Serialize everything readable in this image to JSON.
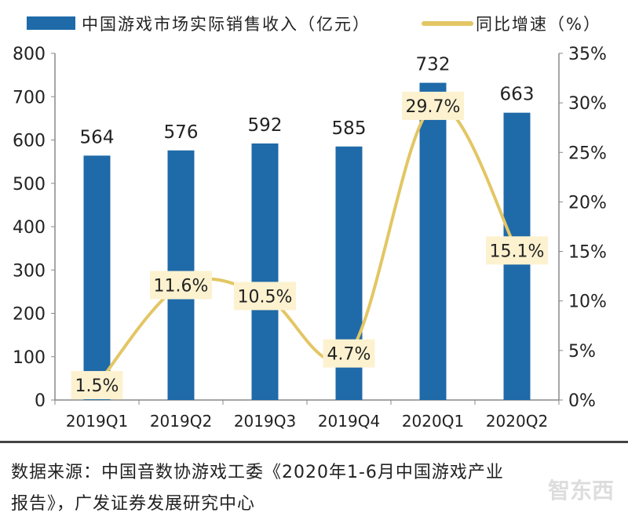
{
  "chart_data": {
    "type": "bar+line",
    "categories": [
      "2019Q1",
      "2019Q2",
      "2019Q3",
      "2019Q4",
      "2020Q1",
      "2020Q2"
    ],
    "series": [
      {
        "name": "中国游戏市场实际销售收入（亿元）",
        "type": "bar",
        "axis": "left",
        "values": [
          564,
          576,
          592,
          585,
          732,
          663
        ],
        "color": "#1f6aa8"
      },
      {
        "name": "同比增速（%）",
        "type": "line",
        "axis": "right",
        "values": [
          1.5,
          11.6,
          10.5,
          4.7,
          29.7,
          15.1
        ],
        "color": "#e3c664"
      }
    ],
    "data_labels_bar": [
      "564",
      "576",
      "592",
      "585",
      "732",
      "663"
    ],
    "data_labels_line": [
      "1.5%",
      "11.6%",
      "10.5%",
      "4.7%",
      "29.7%",
      "15.1%"
    ],
    "ylim": [
      0,
      800
    ],
    "y_ticks": [
      "0",
      "100",
      "200",
      "300",
      "400",
      "500",
      "600",
      "700",
      "800"
    ],
    "y2lim": [
      0,
      35
    ],
    "y2_ticks": [
      "0%",
      "5%",
      "10%",
      "15%",
      "20%",
      "25%",
      "30%",
      "35%"
    ],
    "grid": false,
    "legend": "top"
  },
  "source": {
    "line1": "数据来源：中国音数协游戏工委《2020年1-6月中国游戏产业",
    "line2": "报告》，广发证券发展研究中心"
  },
  "watermark": "智东西"
}
